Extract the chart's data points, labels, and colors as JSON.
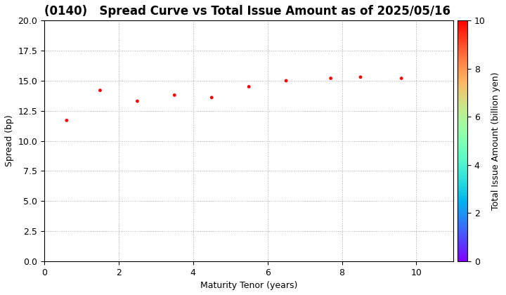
{
  "title": "(0140)   Spread Curve vs Total Issue Amount as of 2025/05/16",
  "xlabel": "Maturity Tenor (years)",
  "ylabel": "Spread (bp)",
  "colorbar_label": "Total Issue Amount (billion yen)",
  "xlim": [
    0,
    11
  ],
  "ylim": [
    0.0,
    20.0
  ],
  "yticks": [
    0.0,
    2.5,
    5.0,
    7.5,
    10.0,
    12.5,
    15.0,
    17.5,
    20.0
  ],
  "xticks": [
    0,
    2,
    4,
    6,
    8,
    10
  ],
  "colorbar_range": [
    0,
    10
  ],
  "colorbar_ticks": [
    0,
    2,
    4,
    6,
    8,
    10
  ],
  "scatter_x": [
    0.6,
    1.5,
    2.5,
    3.5,
    4.5,
    5.5,
    6.5,
    7.7,
    8.5,
    9.6
  ],
  "scatter_y": [
    11.7,
    14.2,
    13.3,
    13.8,
    13.6,
    14.5,
    15.0,
    15.2,
    15.3,
    15.2
  ],
  "scatter_color_values": [
    10,
    10,
    10,
    10,
    10,
    10,
    10,
    10,
    10,
    10
  ],
  "marker_size": 12,
  "colormap": "rainbow",
  "background_color": "#ffffff",
  "grid_color": "#aaaaaa",
  "title_fontsize": 12,
  "label_fontsize": 9,
  "tick_fontsize": 9,
  "colorbar_label_fontsize": 9,
  "colorbar_tick_fontsize": 9
}
